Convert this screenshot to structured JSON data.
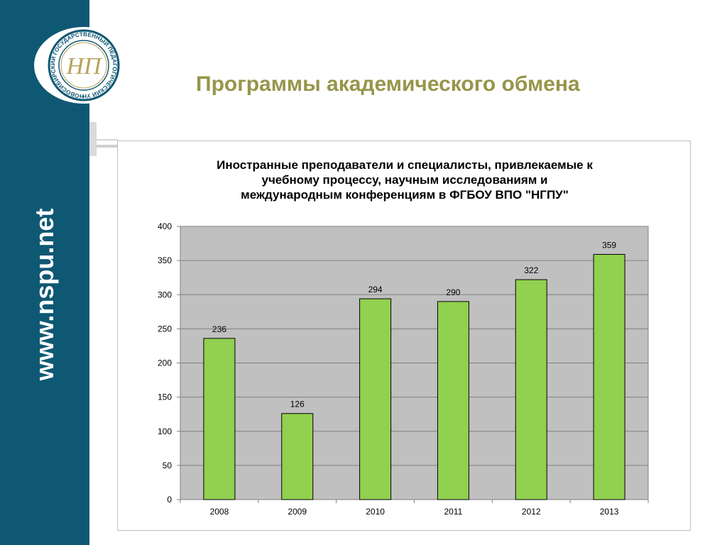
{
  "sidebar": {
    "url": "www.nspu.net"
  },
  "logo": {
    "ring_text": "НОВОСИБИРСКИЙ ГОСУДАРСТВЕННЫЙ ПЕДАГОГИЧЕСКИЙ УНИВЕРСИТЕТ",
    "monogram": "НП"
  },
  "header": {
    "title": "Программы академического обмена"
  },
  "colors": {
    "sidebar": "#0f5874",
    "title": "#95964a",
    "bar_fill": "#92d050",
    "plot_bg": "#c0c0c0"
  },
  "chart_data": {
    "type": "bar",
    "title": "Иностранные преподаватели и специалисты, привлекаемые к\nучебному процессу, научным исследованиям и\nмеждународным конференциям в ФГБОУ ВПО \"НГПУ\"",
    "categories": [
      "2008",
      "2009",
      "2010",
      "2011",
      "2012",
      "2013"
    ],
    "values": [
      236,
      126,
      294,
      290,
      322,
      359
    ],
    "ylim": [
      0,
      400
    ],
    "yticks": [
      0,
      50,
      100,
      150,
      200,
      250,
      300,
      350,
      400
    ],
    "grid": true,
    "legend": "none",
    "xlabel": "",
    "ylabel": ""
  }
}
